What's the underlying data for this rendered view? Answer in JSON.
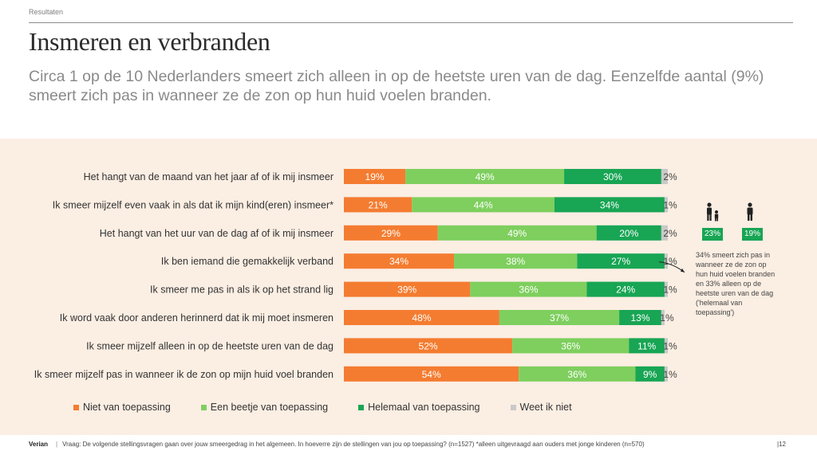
{
  "header": {
    "section": "Resultaten",
    "title": "Insmeren en verbranden",
    "subtitle": "Circa 1 op de 10 Nederlanders smeert zich alleen in op de heetste uren van de dag. Eenzelfde aantal (9%) smeert zich pas in wanneer ze de zon op hun huid voelen branden."
  },
  "colors": {
    "panel_bg": "#fbeee3",
    "niet": "#f47c30",
    "beetje": "#7ecf5e",
    "helemaal": "#18a554",
    "weet": "#c9c9c9"
  },
  "chart_data": {
    "type": "bar",
    "orientation": "horizontal",
    "stacked": true,
    "categories": [
      "Het hangt van de maand van het jaar af of ik mij insmeer",
      "Ik smeer mijzelf even vaak in als dat ik mijn kind(eren) insmeer*",
      "Het hangt van het uur van de dag af of ik mij insmeer",
      "Ik ben iemand die gemakkelijk verband",
      "Ik smeer me pas in als ik op het strand lig",
      "Ik word vaak door anderen herinnerd dat ik mij moet insmeren",
      "Ik smeer mijzelf alleen in op de heetste uren van de dag",
      "Ik smeer mijzelf pas in wanneer ik de zon op mijn huid voel branden"
    ],
    "series": [
      {
        "name": "Niet van toepassing",
        "color": "#f47c30",
        "values": [
          19,
          21,
          29,
          34,
          39,
          48,
          52,
          54
        ],
        "labels": [
          "19%",
          "21%",
          "29%",
          "34%",
          "39%",
          "48%",
          "52%",
          "54%"
        ]
      },
      {
        "name": "Een beetje van toepassing",
        "color": "#7ecf5e",
        "values": [
          49,
          44,
          49,
          38,
          36,
          37,
          36,
          36
        ],
        "labels": [
          "49%",
          "44%",
          "49%",
          "38%",
          "36%",
          "37%",
          "36%",
          "36%"
        ]
      },
      {
        "name": "Helemaal van toepassing",
        "color": "#18a554",
        "values": [
          30,
          34,
          20,
          27,
          24,
          13,
          11,
          9
        ],
        "labels": [
          "30%",
          "34%",
          "20%",
          "27%",
          "24%",
          "13%",
          "11%",
          "9%"
        ]
      },
      {
        "name": "Weet ik niet",
        "color": "#c9c9c9",
        "values": [
          2,
          1,
          2,
          1,
          1,
          1,
          1,
          1
        ],
        "labels": [
          "2%",
          "1%",
          "2%",
          "1%",
          "1%",
          "1%",
          "1%",
          "1%"
        ]
      }
    ],
    "legend_position": "bottom"
  },
  "side": {
    "icon_parent": "parent-with-child-icon",
    "icon_adult": "adult-icon",
    "parent_value": "23%",
    "adult_value": "19%",
    "note": "34% smeert zich pas in wanneer ze de zon op hun huid voelen branden en 33% alleen op de heetste uren van de dag ('helemaal van toepassing')"
  },
  "footer": {
    "brand": "Verian",
    "question": "Vraag: De volgende stellingsvragen gaan over jouw smeergedrag in het algemeen. In hoeverre zijn de stellingen van jou op toepassing? (n=1527) *alleen uitgevraagd aan ouders met jonge kinderen (n=570)",
    "page": "12"
  }
}
